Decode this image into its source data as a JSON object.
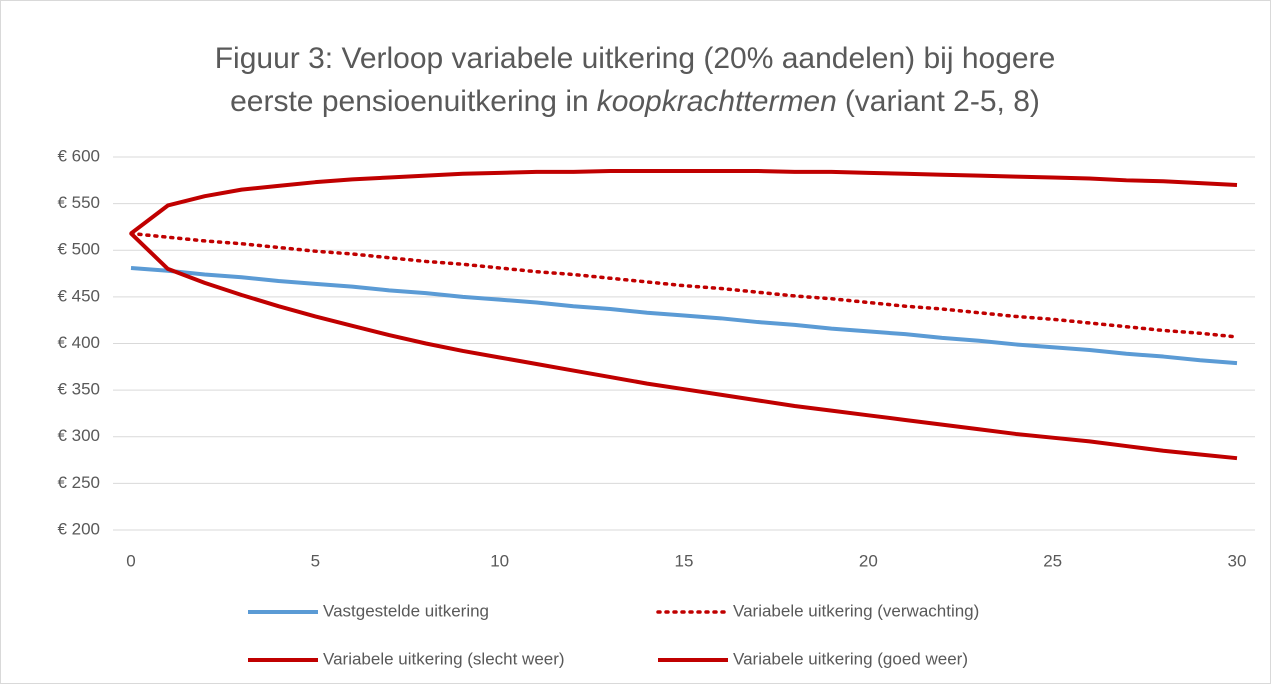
{
  "chart_data": {
    "type": "line",
    "title": [
      "Figuur 3: Verloop variabele uitkering (20% aandelen) bij hogere",
      "eerste pensioenuitkering in",
      "koopkrachttermen",
      "(variant 2-5, 8)"
    ],
    "x": [
      0,
      1,
      2,
      3,
      4,
      5,
      6,
      7,
      8,
      9,
      10,
      11,
      12,
      13,
      14,
      15,
      16,
      17,
      18,
      19,
      20,
      21,
      22,
      23,
      24,
      25,
      26,
      27,
      28,
      29,
      30
    ],
    "xlim": [
      0,
      30
    ],
    "xticks": [
      0,
      5,
      10,
      15,
      20,
      25,
      30
    ],
    "ylim": [
      200,
      600
    ],
    "yticks": [
      {
        "value": 200,
        "label": "€ 200"
      },
      {
        "value": 250,
        "label": "€ 250"
      },
      {
        "value": 300,
        "label": "€ 300"
      },
      {
        "value": 350,
        "label": "€ 350"
      },
      {
        "value": 400,
        "label": "€ 400"
      },
      {
        "value": 450,
        "label": "€ 450"
      },
      {
        "value": 500,
        "label": "€ 500"
      },
      {
        "value": 550,
        "label": "€ 550"
      },
      {
        "value": 600,
        "label": "€ 600"
      }
    ],
    "grid": true,
    "legend": "bottom",
    "series": [
      {
        "name": "Vastgestelde uitkering",
        "color": "#5b9bd5",
        "style": "solid",
        "values": [
          481,
          478,
          474,
          471,
          467,
          464,
          461,
          457,
          454,
          450,
          447,
          444,
          440,
          437,
          433,
          430,
          427,
          423,
          420,
          416,
          413,
          410,
          406,
          403,
          399,
          396,
          393,
          389,
          386,
          382,
          379
        ]
      },
      {
        "name": "Variabele uitkering (verwachting)",
        "color": "#c00000",
        "style": "dotted",
        "values": [
          518,
          514,
          510,
          507,
          503,
          499,
          496,
          492,
          488,
          485,
          481,
          477,
          474,
          470,
          466,
          462,
          459,
          455,
          451,
          448,
          444,
          440,
          437,
          433,
          429,
          426,
          422,
          418,
          414,
          411,
          407
        ]
      },
      {
        "name": "Variabele uitkering (slecht weer)",
        "color": "#c00000",
        "style": "solid",
        "values": [
          518,
          480,
          465,
          452,
          440,
          429,
          419,
          409,
          400,
          392,
          385,
          378,
          371,
          364,
          357,
          351,
          345,
          339,
          333,
          328,
          323,
          318,
          313,
          308,
          303,
          299,
          295,
          290,
          285,
          281,
          277
        ]
      },
      {
        "name": "Variabele uitkering (goed weer)",
        "color": "#c00000",
        "style": "solid",
        "values": [
          518,
          548,
          558,
          565,
          569,
          573,
          576,
          578,
          580,
          582,
          583,
          584,
          584,
          585,
          585,
          585,
          585,
          585,
          584,
          584,
          583,
          582,
          581,
          580,
          579,
          578,
          577,
          575,
          574,
          572,
          570
        ]
      }
    ]
  }
}
